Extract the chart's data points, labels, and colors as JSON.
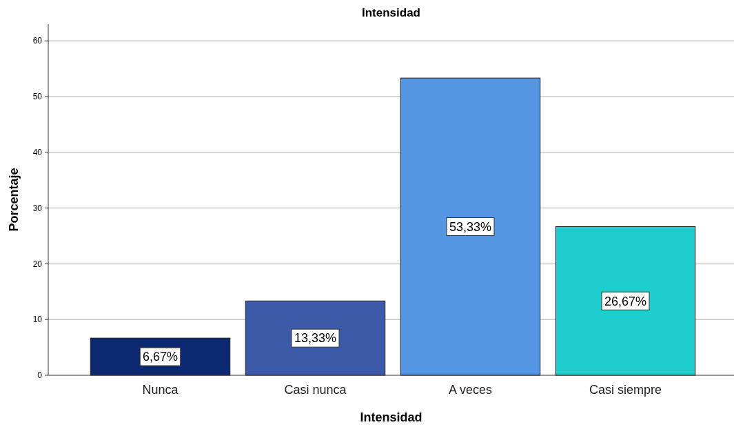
{
  "chart_data": {
    "type": "bar",
    "title": "Intensidad",
    "xlabel": "Intensidad",
    "ylabel": "Porcentaje",
    "categories": [
      "Nunca",
      "Casi nunca",
      "A veces",
      "Casi siempre"
    ],
    "values": [
      6.67,
      13.33,
      53.33,
      26.67
    ],
    "colors": [
      "#0b2870",
      "#3d5aa8",
      "#5596e3",
      "#1ecece"
    ],
    "value_labels": [
      "6,67%",
      "13,33%",
      "53,33%",
      "26,67%"
    ],
    "ylim": [
      0,
      63
    ],
    "yticks": [
      0,
      10,
      20,
      30,
      40,
      50,
      60
    ],
    "grid": "y"
  }
}
